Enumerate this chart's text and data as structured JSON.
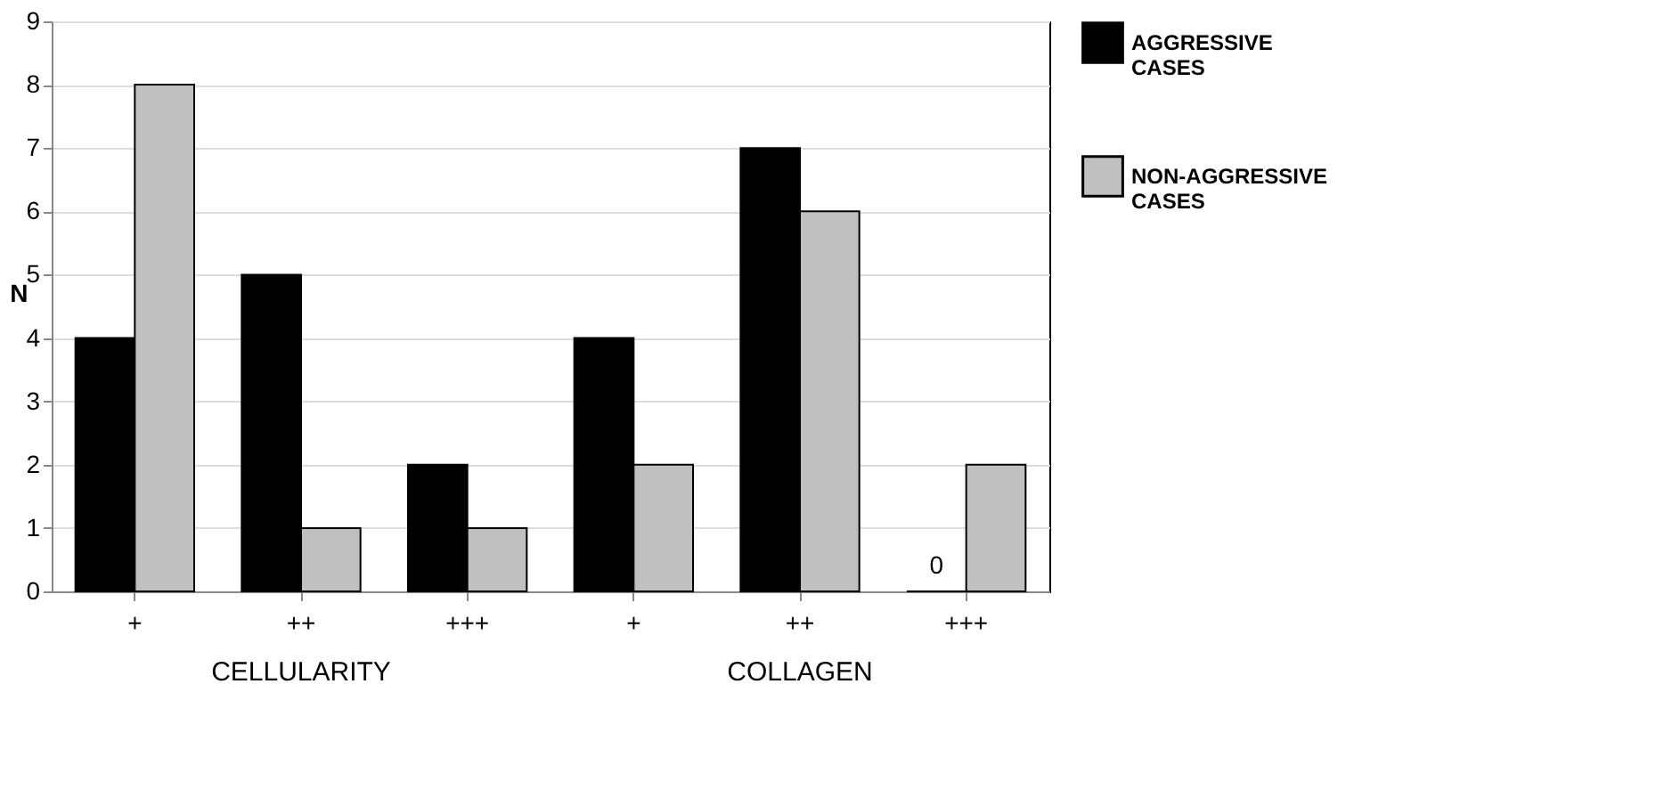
{
  "chart_data": {
    "type": "bar",
    "ylabel": "N",
    "categories": [
      "+",
      "++",
      "+++",
      "+",
      "++",
      "+++"
    ],
    "series": [
      {
        "name": "AGGRESSIVE CASES",
        "color": "#000000",
        "values": [
          4,
          5,
          2,
          4,
          7,
          0
        ],
        "value_labels": [
          null,
          null,
          null,
          null,
          null,
          "0"
        ]
      },
      {
        "name": "NON-AGGRESSIVE CASES",
        "color": "#c0c0c0",
        "values": [
          8,
          1,
          1,
          2,
          6,
          2
        ]
      }
    ],
    "ylim": [
      0,
      9
    ],
    "yticks": [
      0,
      1,
      2,
      3,
      4,
      5,
      6,
      7,
      8,
      9
    ],
    "grid": "y",
    "legend": "top right",
    "annotations": [
      "CELLULARITY",
      "COLLAGEN"
    ]
  }
}
